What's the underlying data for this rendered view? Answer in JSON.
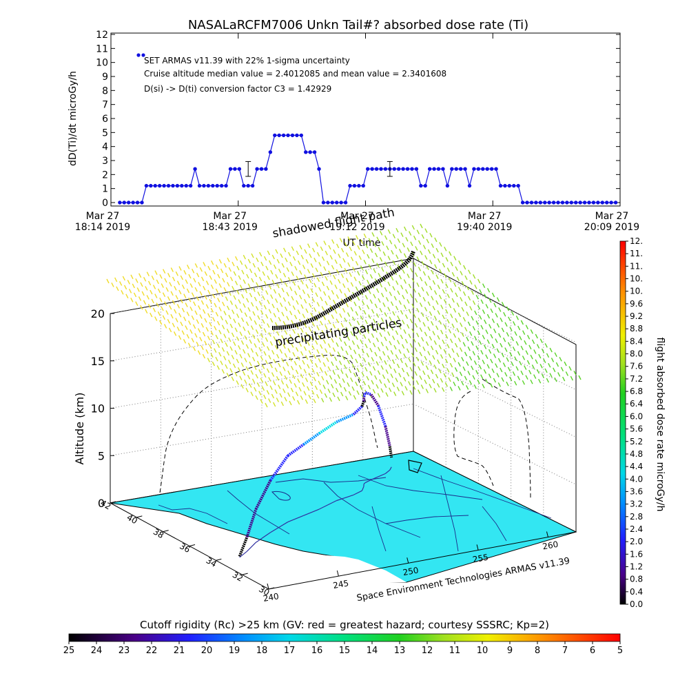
{
  "chart_data": [
    {
      "type": "scatter",
      "title": "NASALaRCFM7006  Unkn Tail#? absorbed dose rate (Ti)",
      "xlabel": "UT time",
      "ylabel": "dD(Ti)/dt microGy/h",
      "ylim": [
        0,
        12
      ],
      "yticks": [
        "0",
        "1",
        "2",
        "3",
        "4",
        "5",
        "6",
        "7",
        "8",
        "9",
        "10",
        "11",
        "12"
      ],
      "xlim": [
        "2019-03-27T18:14",
        "2019-03-27T20:09"
      ],
      "xticks": [
        {
          "line1": "Mar 27",
          "line2": "18:14 2019"
        },
        {
          "line1": "Mar 27",
          "line2": "18:43 2019"
        },
        {
          "line1": "Mar 27",
          "line2": "19:12 2019"
        },
        {
          "line1": "Mar 27",
          "line2": "19:40 2019"
        },
        {
          "line1": "Mar 27",
          "line2": "20:09 2019"
        }
      ],
      "annotations": [
        "SET ARMAS v11.39 with 22% 1-sigma uncertainty",
        "Cruise altitude median value = 2.4012085 and mean value = 2.3401608",
        "D(si) -> D(ti) conversion factor C3 = 1.42929"
      ],
      "series_color": "#1010e0",
      "series": [
        {
          "x": [
            "18:16",
            "18:17",
            "18:18",
            "18:19",
            "18:20",
            "18:21",
            "18:22",
            "18:23",
            "18:24",
            "18:25",
            "18:26",
            "18:27",
            "18:28",
            "18:29",
            "18:30",
            "18:31",
            "18:32",
            "18:33",
            "18:34",
            "18:35",
            "18:36",
            "18:37",
            "18:38",
            "18:39",
            "18:40",
            "18:41",
            "18:42",
            "18:43",
            "18:44",
            "18:45",
            "18:46",
            "18:47",
            "18:48",
            "18:49",
            "18:50",
            "18:51",
            "18:52",
            "18:53",
            "18:54",
            "18:55",
            "18:56",
            "18:57",
            "18:58",
            "18:59",
            "19:00",
            "19:01",
            "19:02",
            "19:03",
            "19:04",
            "19:05",
            "19:06",
            "19:07",
            "19:08",
            "19:09",
            "19:10",
            "19:11",
            "19:12",
            "19:13",
            "19:14",
            "19:15",
            "19:16",
            "19:17",
            "19:18",
            "19:19",
            "19:20",
            "19:21",
            "19:22",
            "19:23",
            "19:24",
            "19:25",
            "19:26",
            "19:27",
            "19:28",
            "19:29",
            "19:30",
            "19:31",
            "19:32",
            "19:33",
            "19:34",
            "19:35",
            "19:36",
            "19:37",
            "19:38",
            "19:39",
            "19:40",
            "19:41",
            "19:42",
            "19:43",
            "19:44",
            "19:45",
            "19:46",
            "19:47",
            "19:48",
            "19:49",
            "19:50",
            "19:51",
            "19:52",
            "19:53",
            "19:54",
            "19:55",
            "19:56",
            "19:57",
            "19:58",
            "19:59",
            "20:00",
            "20:01",
            "20:02",
            "20:03",
            "20:04",
            "20:05",
            "20:06",
            "20:07",
            "20:08"
          ],
          "y": [
            0,
            0,
            0,
            0,
            0,
            0,
            1.2,
            1.2,
            1.2,
            1.2,
            1.2,
            1.2,
            1.2,
            1.2,
            1.2,
            1.2,
            1.2,
            2.4,
            1.2,
            1.2,
            1.2,
            1.2,
            1.2,
            1.2,
            1.2,
            2.4,
            2.4,
            2.4,
            1.2,
            1.2,
            1.2,
            2.4,
            2.4,
            2.4,
            3.6,
            4.8,
            4.8,
            4.8,
            4.8,
            4.8,
            4.8,
            4.8,
            3.6,
            3.6,
            3.6,
            2.4,
            0,
            0,
            0,
            0,
            0,
            0,
            1.2,
            1.2,
            1.2,
            1.2,
            2.4,
            2.4,
            2.4,
            2.4,
            2.4,
            2.4,
            2.4,
            2.4,
            2.4,
            2.4,
            2.4,
            2.4,
            1.2,
            1.2,
            2.4,
            2.4,
            2.4,
            2.4,
            1.2,
            2.4,
            2.4,
            2.4,
            2.4,
            1.2,
            2.4,
            2.4,
            2.4,
            2.4,
            2.4,
            2.4,
            1.2,
            1.2,
            1.2,
            1.2,
            1.2,
            0,
            0,
            0,
            0,
            0,
            0,
            0,
            0,
            0,
            0,
            0,
            0,
            0,
            0,
            0,
            0,
            0,
            0,
            0,
            0,
            0,
            0
          ]
        }
      ],
      "error_bars": [
        {
          "x": "18:45",
          "y": 2.4,
          "err": 0.53
        },
        {
          "x": "19:17",
          "y": 2.4,
          "err": 0.53
        }
      ]
    },
    {
      "type": "scatter",
      "title": "",
      "zlabel": "Altitude (km)",
      "zticks": [
        "0",
        "5",
        "10",
        "15",
        "20"
      ],
      "zlim": [
        0,
        23
      ],
      "lat_ticks": [
        "30",
        "32",
        "34",
        "36",
        "38",
        "40",
        "42"
      ],
      "lon_ticks": [
        "240",
        "245",
        "250",
        "255",
        "260"
      ],
      "overlay_labels": [
        "shadowed flight path",
        "precipitating particles"
      ],
      "credit": "Space Environment Technologies ARMAS v11.39",
      "map_color": "#33e6f2",
      "flight_path": {
        "lat": [
          33.9,
          34.4,
          35.2,
          36.0,
          36.8,
          37.2,
          37.6,
          38.2,
          38.5,
          38.8,
          39.2,
          39.5,
          39.6,
          39.8,
          40.0,
          40.2,
          40.5,
          40.8
        ],
        "lon": [
          241.6,
          242.6,
          244.0,
          245.8,
          247.8,
          249.3,
          250.8,
          252.6,
          254.1,
          255.0,
          255.5,
          255.8,
          256.0,
          256.6,
          257.3,
          258.0,
          258.6,
          259.0
        ],
        "alt_km": [
          0.1,
          1.5,
          3.5,
          5.5,
          7.0,
          7.5,
          8.0,
          8.3,
          8.5,
          8.9,
          9.0,
          9.2,
          9.5,
          9.0,
          7.5,
          5.0,
          2.5,
          1.0
        ],
        "dose_rate": [
          0.0,
          1.2,
          1.2,
          2.4,
          2.4,
          3.6,
          4.8,
          3.6,
          2.4,
          0.0,
          1.2,
          2.4,
          2.4,
          1.2,
          2.4,
          1.2,
          0.0,
          0.0
        ]
      },
      "colorbar": {
        "label": "flight absorbed dose rate microGy/h",
        "ticks": [
          "0.0",
          "0.4",
          "0.8",
          "1.2",
          "1.6",
          "2.0",
          "2.4",
          "2.8",
          "3.2",
          "3.6",
          "4.0",
          "4.4",
          "4.8",
          "5.2",
          "5.6",
          "6.0",
          "6.4",
          "6.8",
          "7.2",
          "7.6",
          "8.0",
          "8.4",
          "8.8",
          "9.2",
          "9.6",
          "10.",
          "10.",
          "11.",
          "11.",
          "12."
        ]
      }
    },
    {
      "type": "heatmap",
      "title": "Cutoff rigidity (Rc) >25 km (GV: red = greatest hazard; courtesy SSSRC; Kp=2)",
      "colorbar_ticks": [
        "25",
        "24",
        "23",
        "22",
        "21",
        "20",
        "19",
        "18",
        "17",
        "16",
        "15",
        "14",
        "13",
        "12",
        "11",
        "10",
        "9",
        "8",
        "7",
        "6",
        "5"
      ]
    }
  ]
}
